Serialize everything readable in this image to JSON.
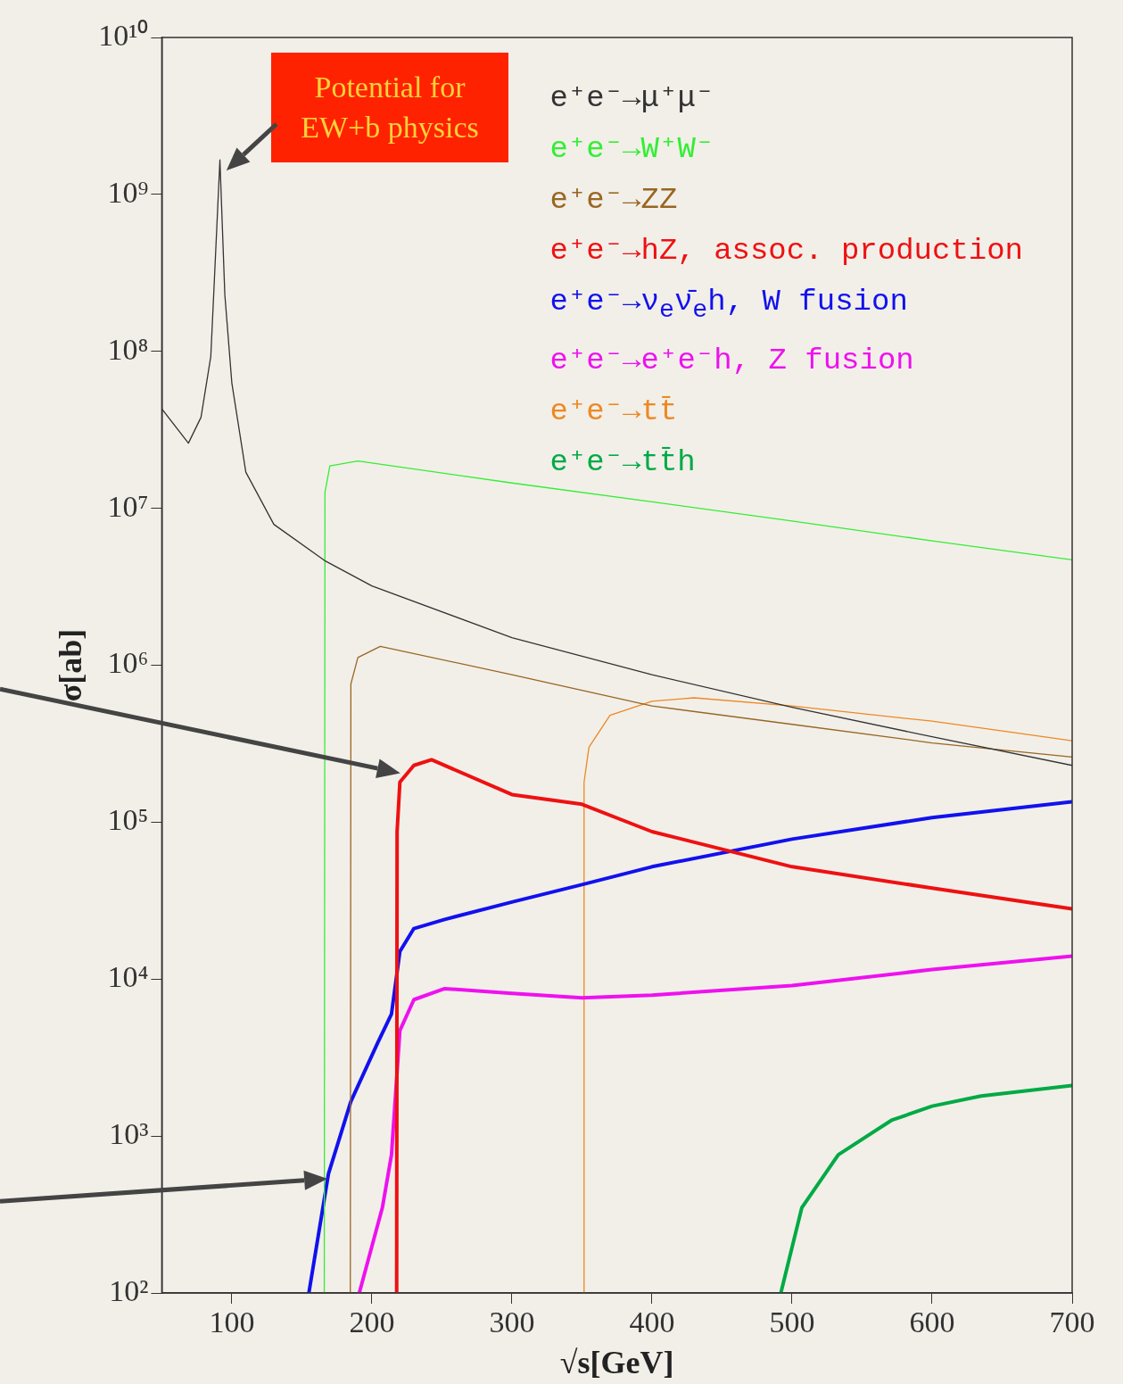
{
  "chart_data": {
    "type": "line",
    "xlabel": "√s[GeV]",
    "ylabel": "σ[ab]",
    "log": "y",
    "grid": false,
    "legend": "top right",
    "marker": "none",
    "line_style": "solid",
    "xlim": [
      50,
      700
    ],
    "xticks": [
      100,
      200,
      300,
      400,
      500,
      600,
      700
    ],
    "ylim": [
      100,
      10000000000
    ],
    "yticks": [
      {
        "value": 100,
        "label": "10²"
      },
      {
        "value": 1000,
        "label": "10³"
      },
      {
        "value": 10000,
        "label": "10⁴"
      },
      {
        "value": 100000,
        "label": "10⁵"
      },
      {
        "value": 1000000,
        "label": "10⁶"
      },
      {
        "value": 10000000,
        "label": "10⁷"
      },
      {
        "value": 100000000,
        "label": "10⁸"
      },
      {
        "value": 1000000000,
        "label": "10⁹"
      },
      {
        "value": 10000000000,
        "label": "10¹⁰"
      }
    ],
    "annotations": [
      "Potential for EW+b physics"
    ],
    "series": [
      {
        "name": "e⁺e⁻→μ⁺μ⁻",
        "color": "#333333",
        "x": [
          50,
          69,
          78,
          85,
          88,
          91.5,
          95,
          100,
          110,
          130,
          167,
          200,
          300,
          400,
          500,
          600,
          700
        ],
        "values": [
          43000000,
          26000000,
          38000000,
          93000000,
          350000000,
          1660000000,
          230000000,
          63000000,
          17000000,
          7900000,
          4600000,
          3200000,
          1500000,
          870000,
          540000,
          350000,
          230000
        ]
      },
      {
        "name": "e⁺e⁻→W⁺W⁻",
        "color": "#33ee33",
        "x": [
          166,
          166.5,
          170,
          190,
          300,
          400,
          500,
          600,
          700
        ],
        "values": [
          100,
          12600000,
          18600000,
          20000000,
          14500000,
          11000000,
          8300000,
          6200000,
          4700000
        ]
      },
      {
        "name": "e⁺e⁻→ZZ",
        "color": "#996622",
        "x": [
          184.6,
          185,
          190,
          206,
          300,
          400,
          500,
          600,
          700
        ],
        "values": [
          100,
          760000,
          1120000,
          1320000,
          870000,
          550000,
          420000,
          320000,
          260000
        ]
      },
      {
        "name": "e⁺e⁻→hZ, assoc. production",
        "color": "#ee1111",
        "x": [
          217.7,
          218,
          220,
          230,
          242.6,
          300,
          350,
          400,
          500,
          600,
          700
        ],
        "values": [
          100,
          87000,
          180000,
          230000,
          250000,
          150000,
          130000,
          87000,
          52000,
          38000,
          28000
        ]
      },
      {
        "name": "e⁺e⁻→ν$_{e}$ν̄$_{e}$h, W fusion",
        "color": "#1111ee",
        "x": [
          155,
          169,
          185,
          204,
          214,
          220,
          230,
          252,
          300,
          350,
          400,
          500,
          600,
          700
        ],
        "values": [
          100,
          575,
          1660,
          3900,
          6000,
          15000,
          21000,
          24000,
          31000,
          40000,
          52000,
          78000,
          107000,
          135000
        ]
      },
      {
        "name": "e⁺e⁻→e⁺e⁻h, Z fusion",
        "color": "#ee11ee",
        "x": [
          191,
          207.5,
          214,
          220,
          230,
          252,
          300,
          350,
          400,
          500,
          600,
          700
        ],
        "values": [
          100,
          350,
          760,
          4700,
          7400,
          8700,
          8100,
          7600,
          7900,
          9100,
          11500,
          14000
        ]
      },
      {
        "name": "e⁺e⁻→tt̄",
        "color": "#ee8822",
        "x": [
          351,
          351.5,
          355,
          370,
          400,
          430,
          500,
          600,
          700
        ],
        "values": [
          100,
          180000,
          300000,
          480000,
          590000,
          620000,
          550000,
          440000,
          330000
        ]
      },
      {
        "name": "e⁺e⁻→tt̄h",
        "color": "#00aa44",
        "x": [
          492,
          507,
          533,
          571,
          600,
          635,
          700
        ],
        "values": [
          100,
          350,
          760,
          1260,
          1550,
          1800,
          2100
        ]
      }
    ]
  }
}
